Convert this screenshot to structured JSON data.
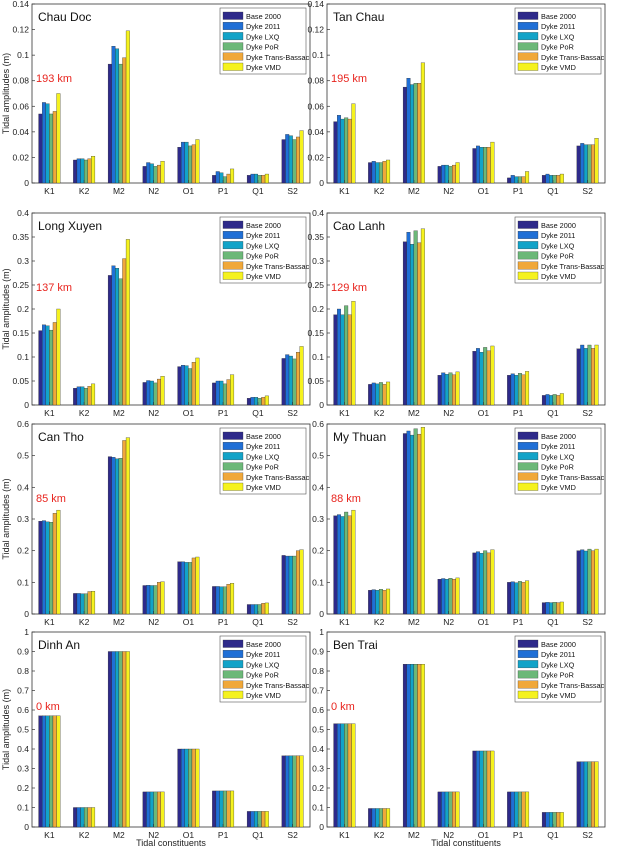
{
  "figure": {
    "ylabel": "Tidal amplitudes (m)",
    "xlabel": "Tidal constituents"
  },
  "legend": {
    "entries": [
      "Base 2000",
      "Dyke 2011",
      "Dyke LXQ",
      "Dyke PoR",
      "Dyke Trans-Bassac",
      "Dyke VMD"
    ],
    "colors": [
      "#2e2a8a",
      "#1f6fd6",
      "#12a3c8",
      "#6cb878",
      "#f0a83a",
      "#f5f21e"
    ]
  },
  "chart_data": [
    {
      "type": "bar",
      "station": "Chau Doc",
      "distance": "193 km",
      "categories": [
        "K1",
        "K2",
        "M2",
        "N2",
        "O1",
        "P1",
        "Q1",
        "S2"
      ],
      "ylim": [
        0,
        0.14
      ],
      "yticks": [
        "0",
        "0.02",
        "0.04",
        "0.06",
        "0.08",
        "0.1",
        "0.12",
        "0.14"
      ],
      "series": [
        {
          "name": "Base 2000",
          "values": [
            0.054,
            0.018,
            0.093,
            0.013,
            0.028,
            0.006,
            0.006,
            0.034
          ]
        },
        {
          "name": "Dyke 2011",
          "values": [
            0.063,
            0.019,
            0.107,
            0.016,
            0.032,
            0.009,
            0.007,
            0.038
          ]
        },
        {
          "name": "Dyke LXQ",
          "values": [
            0.062,
            0.019,
            0.105,
            0.015,
            0.032,
            0.008,
            0.007,
            0.037
          ]
        },
        {
          "name": "Dyke PoR",
          "values": [
            0.054,
            0.018,
            0.093,
            0.013,
            0.029,
            0.005,
            0.006,
            0.034
          ]
        },
        {
          "name": "Dyke Trans-Bassac",
          "values": [
            0.056,
            0.019,
            0.098,
            0.014,
            0.03,
            0.007,
            0.006,
            0.036
          ]
        },
        {
          "name": "Dyke VMD",
          "values": [
            0.07,
            0.021,
            0.119,
            0.017,
            0.034,
            0.011,
            0.007,
            0.041
          ]
        }
      ]
    },
    {
      "type": "bar",
      "station": "Tan Chau",
      "distance": "195 km",
      "categories": [
        "K1",
        "K2",
        "M2",
        "N2",
        "O1",
        "P1",
        "Q1",
        "S2"
      ],
      "ylim": [
        0,
        0.14
      ],
      "yticks": [
        "0",
        "0.02",
        "0.04",
        "0.06",
        "0.08",
        "0.1",
        "0.12",
        "0.14"
      ],
      "series": [
        {
          "name": "Base 2000",
          "values": [
            0.048,
            0.016,
            0.075,
            0.013,
            0.027,
            0.004,
            0.006,
            0.029
          ]
        },
        {
          "name": "Dyke 2011",
          "values": [
            0.053,
            0.017,
            0.082,
            0.014,
            0.029,
            0.006,
            0.007,
            0.031
          ]
        },
        {
          "name": "Dyke LXQ",
          "values": [
            0.05,
            0.016,
            0.077,
            0.014,
            0.028,
            0.005,
            0.006,
            0.03
          ]
        },
        {
          "name": "Dyke PoR",
          "values": [
            0.051,
            0.016,
            0.078,
            0.013,
            0.028,
            0.005,
            0.006,
            0.03
          ]
        },
        {
          "name": "Dyke Trans-Bassac",
          "values": [
            0.05,
            0.017,
            0.078,
            0.014,
            0.028,
            0.005,
            0.006,
            0.03
          ]
        },
        {
          "name": "Dyke VMD",
          "values": [
            0.062,
            0.018,
            0.094,
            0.016,
            0.032,
            0.009,
            0.007,
            0.035
          ]
        }
      ]
    },
    {
      "type": "bar",
      "station": "Long Xuyen",
      "distance": "137 km",
      "categories": [
        "K1",
        "K2",
        "M2",
        "N2",
        "O1",
        "P1",
        "Q1",
        "S2"
      ],
      "ylim": [
        0,
        0.4
      ],
      "yticks": [
        "0",
        "0.05",
        "0.1",
        "0.15",
        "0.2",
        "0.25",
        "0.3",
        "0.35",
        "0.4"
      ],
      "series": [
        {
          "name": "Base 2000",
          "values": [
            0.155,
            0.035,
            0.27,
            0.047,
            0.08,
            0.046,
            0.014,
            0.097
          ]
        },
        {
          "name": "Dyke 2011",
          "values": [
            0.167,
            0.038,
            0.29,
            0.051,
            0.083,
            0.05,
            0.016,
            0.105
          ]
        },
        {
          "name": "Dyke LXQ",
          "values": [
            0.165,
            0.038,
            0.285,
            0.05,
            0.082,
            0.05,
            0.016,
            0.102
          ]
        },
        {
          "name": "Dyke PoR",
          "values": [
            0.156,
            0.035,
            0.263,
            0.046,
            0.076,
            0.044,
            0.014,
            0.096
          ]
        },
        {
          "name": "Dyke Trans-Bassac",
          "values": [
            0.172,
            0.039,
            0.305,
            0.054,
            0.089,
            0.053,
            0.016,
            0.11
          ]
        },
        {
          "name": "Dyke VMD",
          "values": [
            0.2,
            0.044,
            0.345,
            0.06,
            0.098,
            0.063,
            0.019,
            0.122
          ]
        }
      ]
    },
    {
      "type": "bar",
      "station": "Cao Lanh",
      "distance": "129 km",
      "categories": [
        "K1",
        "K2",
        "M2",
        "N2",
        "O1",
        "P1",
        "Q1",
        "S2"
      ],
      "ylim": [
        0,
        0.4
      ],
      "yticks": [
        "0",
        "0.05",
        "0.1",
        "0.15",
        "0.2",
        "0.25",
        "0.3",
        "0.35",
        "0.4"
      ],
      "series": [
        {
          "name": "Base 2000",
          "values": [
            0.188,
            0.043,
            0.34,
            0.062,
            0.112,
            0.062,
            0.02,
            0.117
          ]
        },
        {
          "name": "Dyke 2011",
          "values": [
            0.2,
            0.046,
            0.36,
            0.067,
            0.118,
            0.065,
            0.022,
            0.125
          ]
        },
        {
          "name": "Dyke LXQ",
          "values": [
            0.188,
            0.044,
            0.335,
            0.064,
            0.11,
            0.062,
            0.02,
            0.118
          ]
        },
        {
          "name": "Dyke PoR",
          "values": [
            0.207,
            0.047,
            0.363,
            0.067,
            0.12,
            0.066,
            0.022,
            0.125
          ]
        },
        {
          "name": "Dyke Trans-Bassac",
          "values": [
            0.188,
            0.043,
            0.338,
            0.063,
            0.113,
            0.063,
            0.02,
            0.118
          ]
        },
        {
          "name": "Dyke VMD",
          "values": [
            0.216,
            0.048,
            0.367,
            0.069,
            0.123,
            0.07,
            0.024,
            0.125
          ]
        }
      ]
    },
    {
      "type": "bar",
      "station": "Can Tho",
      "distance": "85 km",
      "categories": [
        "K1",
        "K2",
        "M2",
        "N2",
        "O1",
        "P1",
        "Q1",
        "S2"
      ],
      "ylim": [
        0,
        0.6
      ],
      "yticks": [
        "0",
        "0.1",
        "0.2",
        "0.3",
        "0.4",
        "0.5",
        "0.6"
      ],
      "series": [
        {
          "name": "Base 2000",
          "values": [
            0.293,
            0.065,
            0.497,
            0.09,
            0.165,
            0.087,
            0.03,
            0.185
          ]
        },
        {
          "name": "Dyke 2011",
          "values": [
            0.295,
            0.065,
            0.495,
            0.091,
            0.165,
            0.087,
            0.03,
            0.183
          ]
        },
        {
          "name": "Dyke LXQ",
          "values": [
            0.291,
            0.064,
            0.49,
            0.09,
            0.163,
            0.086,
            0.03,
            0.183
          ]
        },
        {
          "name": "Dyke PoR",
          "values": [
            0.29,
            0.064,
            0.492,
            0.09,
            0.163,
            0.086,
            0.03,
            0.183
          ]
        },
        {
          "name": "Dyke Trans-Bassac",
          "values": [
            0.318,
            0.071,
            0.548,
            0.1,
            0.177,
            0.094,
            0.034,
            0.2
          ]
        },
        {
          "name": "Dyke VMD",
          "values": [
            0.328,
            0.072,
            0.557,
            0.102,
            0.18,
            0.097,
            0.035,
            0.203
          ]
        }
      ]
    },
    {
      "type": "bar",
      "station": "My Thuan",
      "distance": "88 km",
      "categories": [
        "K1",
        "K2",
        "M2",
        "N2",
        "O1",
        "P1",
        "Q1",
        "S2"
      ],
      "ylim": [
        0,
        0.6
      ],
      "yticks": [
        "0",
        "0.1",
        "0.2",
        "0.3",
        "0.4",
        "0.5",
        "0.6"
      ],
      "series": [
        {
          "name": "Base 2000",
          "values": [
            0.31,
            0.075,
            0.57,
            0.11,
            0.193,
            0.1,
            0.036,
            0.2
          ]
        },
        {
          "name": "Dyke 2011",
          "values": [
            0.314,
            0.077,
            0.578,
            0.112,
            0.197,
            0.102,
            0.037,
            0.203
          ]
        },
        {
          "name": "Dyke LXQ",
          "values": [
            0.308,
            0.075,
            0.565,
            0.11,
            0.192,
            0.099,
            0.036,
            0.199
          ]
        },
        {
          "name": "Dyke PoR",
          "values": [
            0.322,
            0.078,
            0.585,
            0.113,
            0.2,
            0.103,
            0.037,
            0.205
          ]
        },
        {
          "name": "Dyke Trans-Bassac",
          "values": [
            0.31,
            0.075,
            0.568,
            0.11,
            0.193,
            0.1,
            0.036,
            0.2
          ]
        },
        {
          "name": "Dyke VMD",
          "values": [
            0.328,
            0.079,
            0.59,
            0.114,
            0.203,
            0.105,
            0.038,
            0.205
          ]
        }
      ]
    },
    {
      "type": "bar",
      "station": "Dinh An",
      "distance": "0 km",
      "categories": [
        "K1",
        "K2",
        "M2",
        "N2",
        "O1",
        "P1",
        "Q1",
        "S2"
      ],
      "ylim": [
        0,
        1
      ],
      "yticks": [
        "0",
        "0.1",
        "0.2",
        "0.3",
        "0.4",
        "0.5",
        "0.6",
        "0.7",
        "0.8",
        "0.9",
        "1"
      ],
      "series": [
        {
          "name": "Base 2000",
          "values": [
            0.57,
            0.1,
            0.9,
            0.18,
            0.4,
            0.185,
            0.08,
            0.365
          ]
        },
        {
          "name": "Dyke 2011",
          "values": [
            0.57,
            0.1,
            0.9,
            0.18,
            0.4,
            0.185,
            0.08,
            0.365
          ]
        },
        {
          "name": "Dyke LXQ",
          "values": [
            0.57,
            0.1,
            0.9,
            0.18,
            0.4,
            0.185,
            0.08,
            0.365
          ]
        },
        {
          "name": "Dyke PoR",
          "values": [
            0.57,
            0.1,
            0.9,
            0.18,
            0.4,
            0.185,
            0.08,
            0.365
          ]
        },
        {
          "name": "Dyke Trans-Bassac",
          "values": [
            0.57,
            0.1,
            0.9,
            0.18,
            0.4,
            0.185,
            0.08,
            0.365
          ]
        },
        {
          "name": "Dyke VMD",
          "values": [
            0.57,
            0.1,
            0.9,
            0.18,
            0.4,
            0.185,
            0.08,
            0.365
          ]
        }
      ]
    },
    {
      "type": "bar",
      "station": "Ben Trai",
      "distance": "0 km",
      "categories": [
        "K1",
        "K2",
        "M2",
        "N2",
        "O1",
        "P1",
        "Q1",
        "S2"
      ],
      "ylim": [
        0,
        1
      ],
      "yticks": [
        "0",
        "0.1",
        "0.2",
        "0.3",
        "0.4",
        "0.5",
        "0.6",
        "0.7",
        "0.8",
        "0.9",
        "1"
      ],
      "series": [
        {
          "name": "Base 2000",
          "values": [
            0.53,
            0.095,
            0.835,
            0.18,
            0.39,
            0.18,
            0.075,
            0.335
          ]
        },
        {
          "name": "Dyke 2011",
          "values": [
            0.53,
            0.095,
            0.835,
            0.18,
            0.39,
            0.18,
            0.075,
            0.335
          ]
        },
        {
          "name": "Dyke LXQ",
          "values": [
            0.53,
            0.095,
            0.835,
            0.18,
            0.39,
            0.18,
            0.075,
            0.335
          ]
        },
        {
          "name": "Dyke PoR",
          "values": [
            0.53,
            0.095,
            0.835,
            0.18,
            0.39,
            0.18,
            0.075,
            0.335
          ]
        },
        {
          "name": "Dyke Trans-Bassac",
          "values": [
            0.53,
            0.095,
            0.835,
            0.18,
            0.39,
            0.18,
            0.075,
            0.335
          ]
        },
        {
          "name": "Dyke VMD",
          "values": [
            0.53,
            0.095,
            0.835,
            0.18,
            0.39,
            0.18,
            0.075,
            0.335
          ]
        }
      ]
    }
  ]
}
